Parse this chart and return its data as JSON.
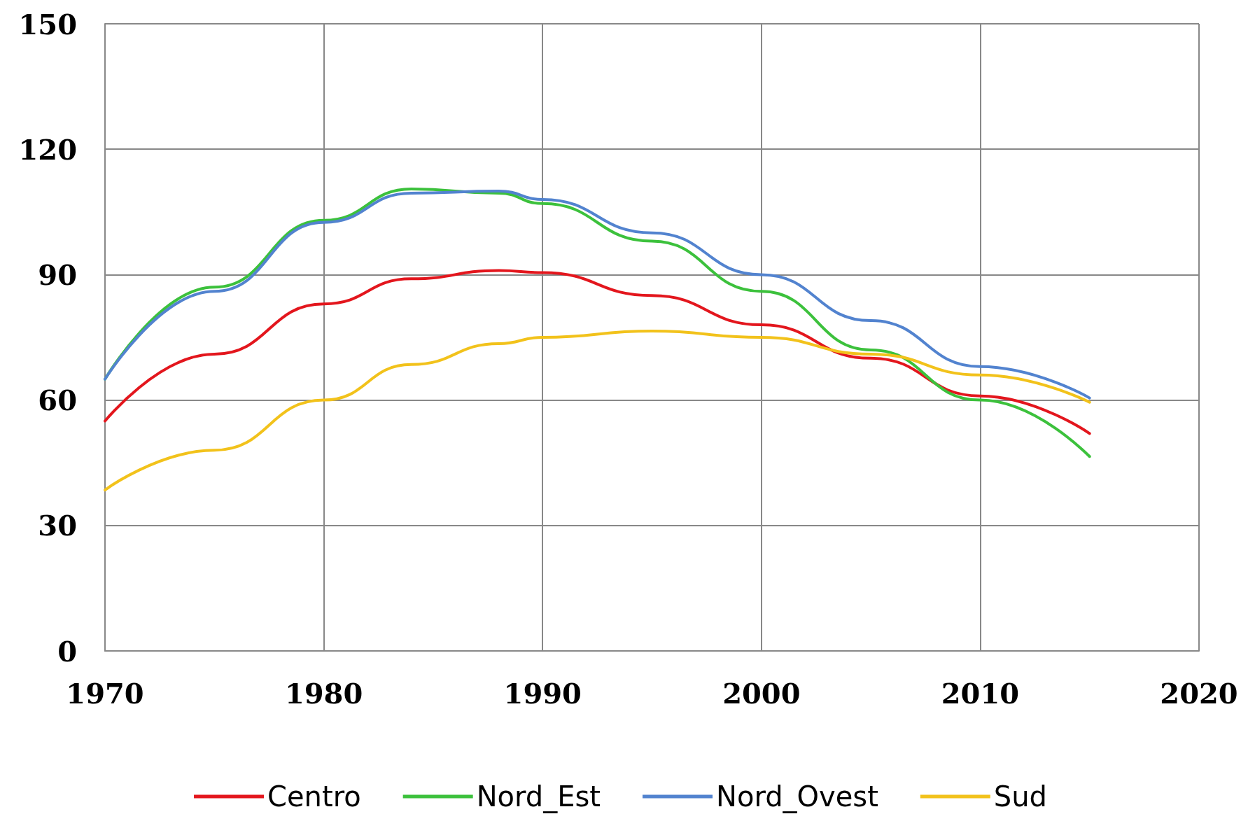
{
  "chart_data": {
    "type": "line",
    "x": [
      1970,
      1975,
      1980,
      1984,
      1988,
      1990,
      1995,
      2000,
      2005,
      2010,
      2015
    ],
    "series": [
      {
        "name": "Centro",
        "color": "#e3161d",
        "values": [
          55,
          71,
          83,
          89,
          91,
          90.5,
          85,
          78,
          70,
          61,
          52
        ]
      },
      {
        "name": "Nord_Est",
        "color": "#3cc13c",
        "values": [
          65,
          87,
          103,
          110.5,
          109.5,
          107,
          98,
          86,
          72,
          60,
          46.5
        ]
      },
      {
        "name": "Nord_Ovest",
        "color": "#5283cf",
        "values": [
          65,
          86,
          102.5,
          109.5,
          110,
          108,
          100,
          90,
          79,
          68,
          60.5
        ]
      },
      {
        "name": "Sud",
        "color": "#f2c21b",
        "values": [
          38.5,
          48,
          60,
          68.5,
          73.5,
          75,
          76.5,
          75,
          71,
          66,
          59.5
        ]
      }
    ],
    "xlim": [
      1970,
      2020
    ],
    "xticks": [
      1970,
      1980,
      1990,
      2000,
      2010,
      2020
    ],
    "ylim": [
      0,
      150
    ],
    "yticks": [
      0,
      30,
      60,
      90,
      120,
      150
    ],
    "grid": true,
    "legend": "bottom",
    "marker": "none",
    "line_style": "solid"
  }
}
